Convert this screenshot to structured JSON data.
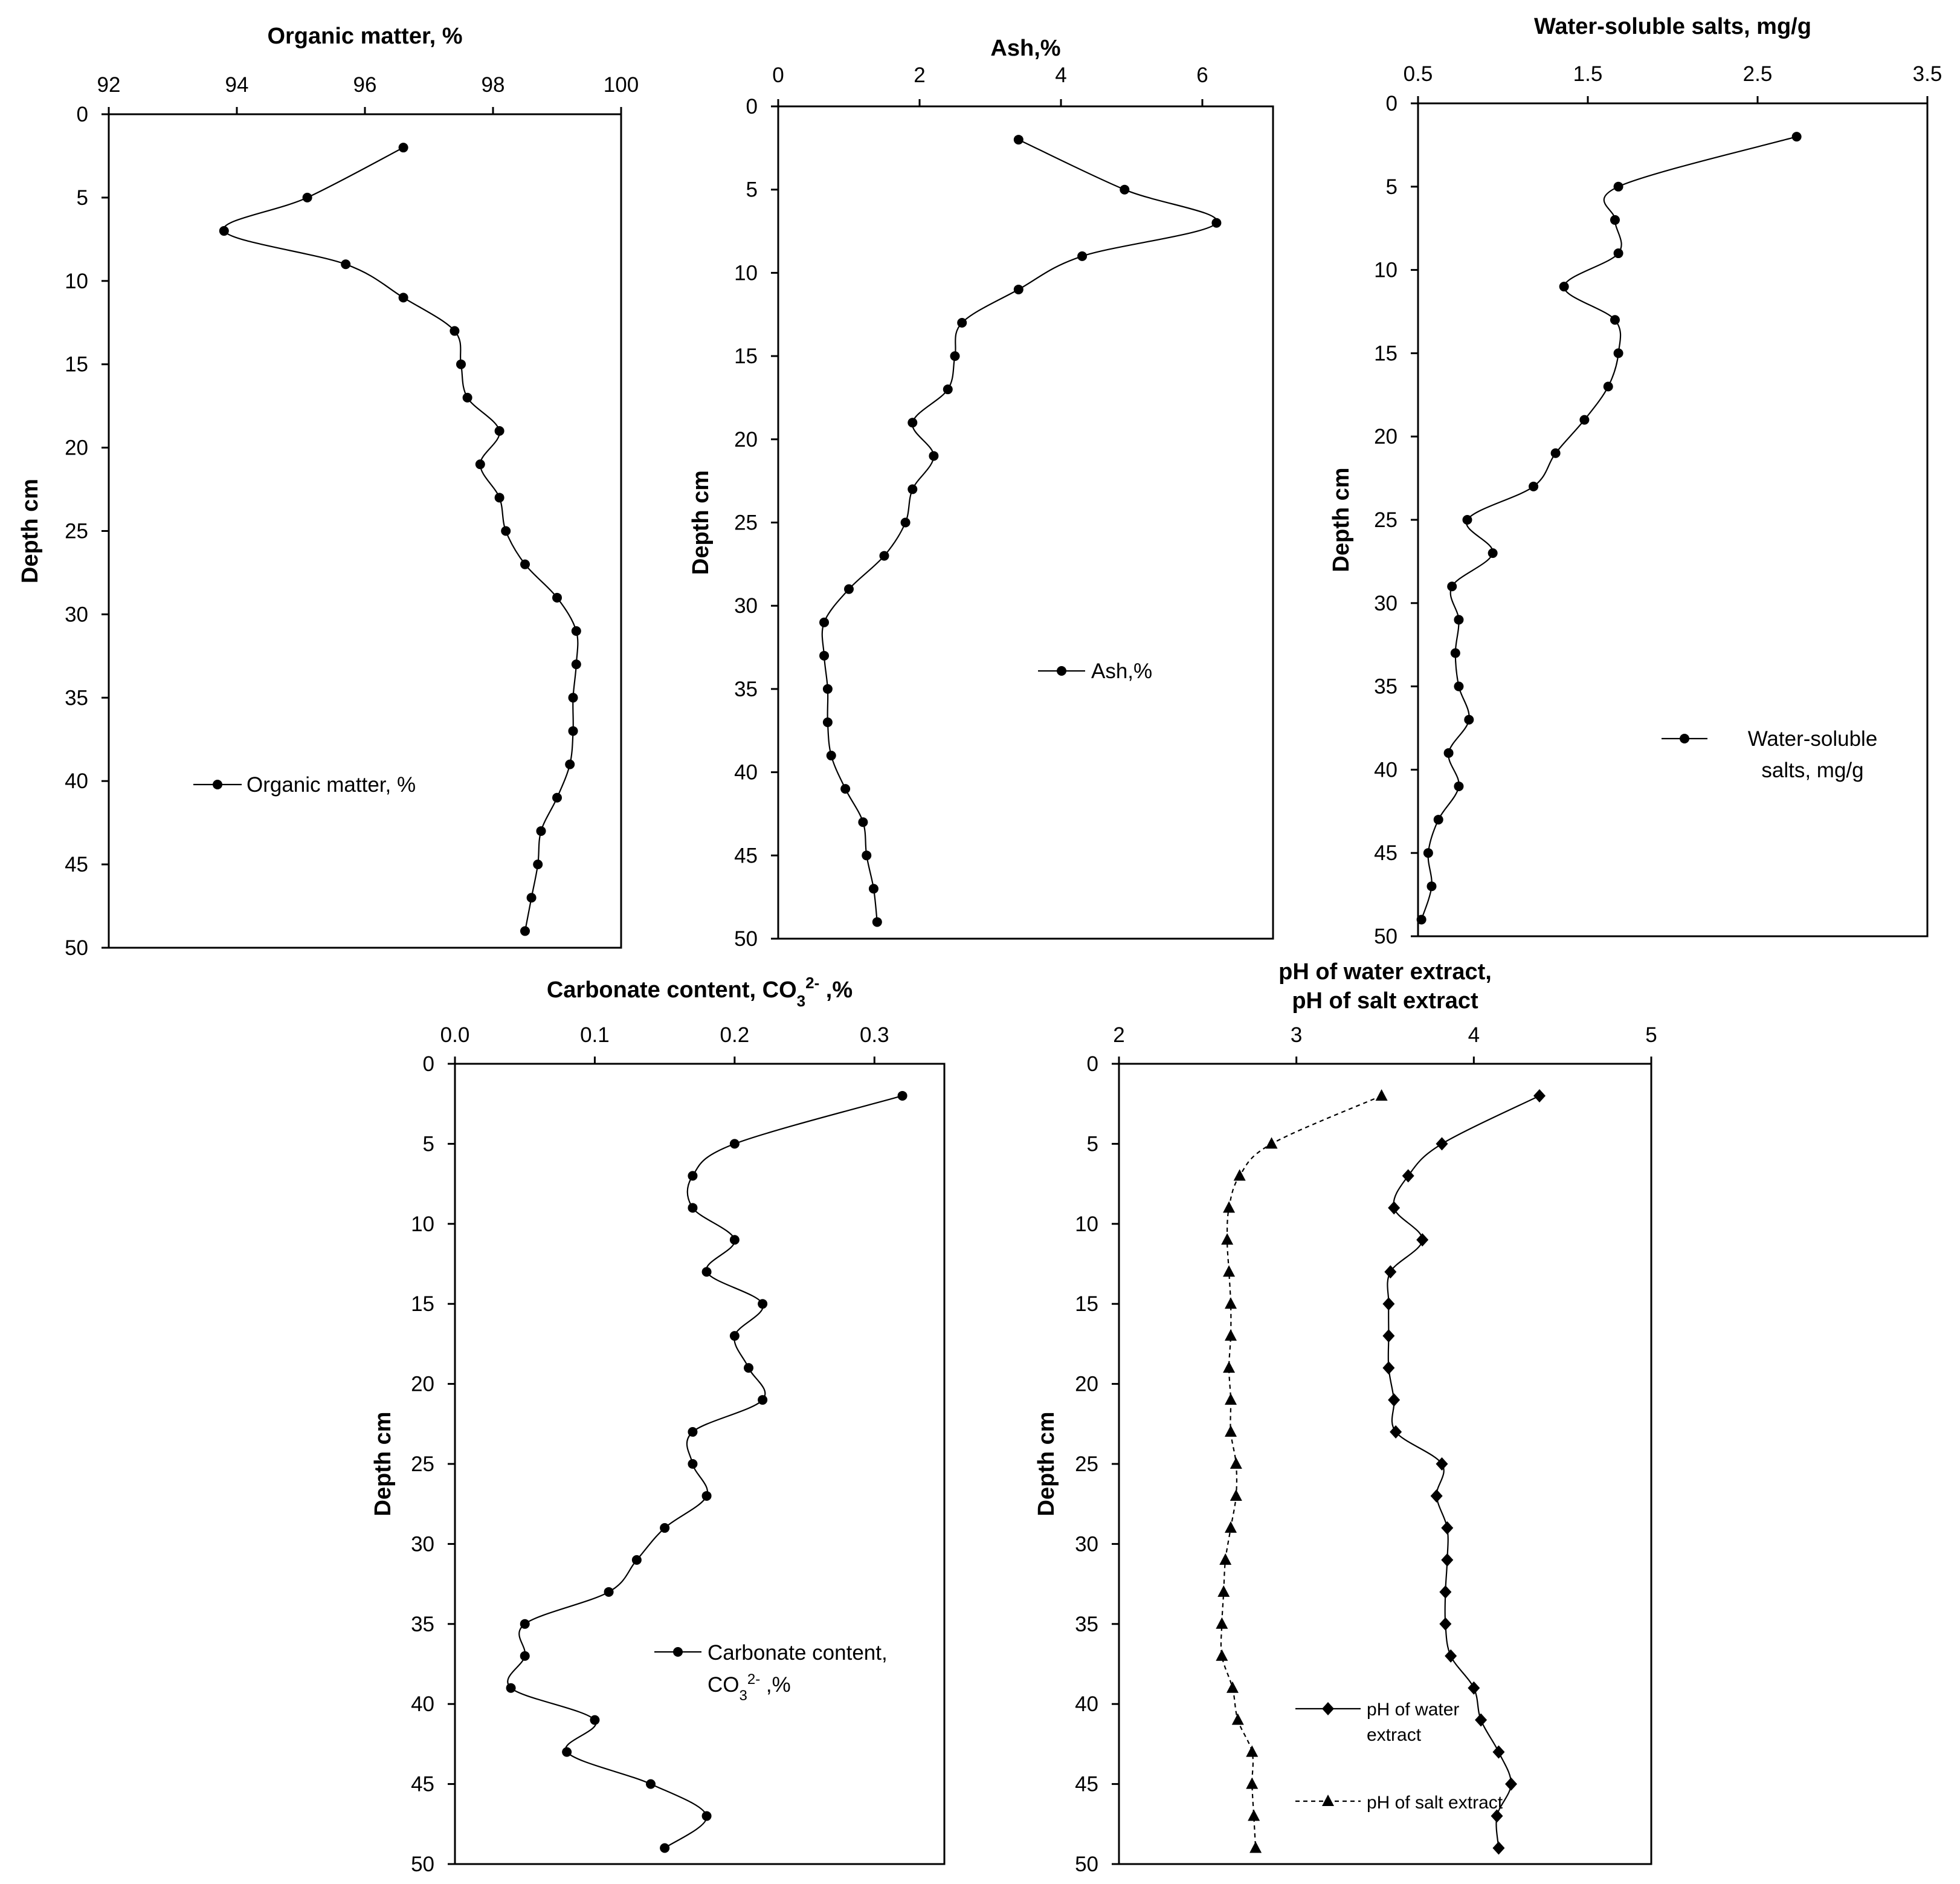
{
  "depth_label": "Depth cm",
  "chart_data": [
    {
      "id": "organic",
      "type": "line",
      "title": "Organic matter, %",
      "xlabel": "Organic matter, %",
      "ylabel": "Depth cm",
      "xlim": [
        92,
        100
      ],
      "ylim": [
        0,
        50
      ],
      "xticks": [
        "92",
        "94",
        "96",
        "98",
        "100"
      ],
      "yticks": [
        "0",
        "5",
        "10",
        "15",
        "20",
        "25",
        "30",
        "35",
        "40",
        "45",
        "50"
      ],
      "legend": {
        "position": "bottom-left",
        "labels": [
          "Organic matter, %"
        ]
      },
      "series": [
        {
          "name": "Organic matter, %",
          "marker": "circle",
          "dashed": false,
          "depth": [
            2,
            5,
            7,
            9,
            11,
            13,
            15,
            17,
            19,
            21,
            23,
            25,
            27,
            29,
            31,
            33,
            35,
            37,
            39,
            41,
            43,
            45,
            47,
            49
          ],
          "values": [
            96.6,
            95.1,
            93.8,
            95.7,
            96.6,
            97.4,
            97.5,
            97.6,
            98.1,
            97.8,
            98.1,
            98.2,
            98.5,
            99.0,
            99.3,
            99.3,
            99.25,
            99.25,
            99.2,
            99.0,
            98.75,
            98.7,
            98.6,
            98.5
          ]
        }
      ]
    },
    {
      "id": "ash",
      "type": "line",
      "title": "Ash,%",
      "xlabel": "Ash,%",
      "ylabel": "Depth cm",
      "xlim": [
        0,
        7
      ],
      "ylim": [
        0,
        50
      ],
      "xticks": [
        "0",
        "2",
        "4",
        "6"
      ],
      "yticks": [
        "0",
        "5",
        "10",
        "15",
        "20",
        "25",
        "30",
        "35",
        "40",
        "45",
        "50"
      ],
      "legend": {
        "position": "middle-right",
        "labels": [
          "Ash,%"
        ]
      },
      "series": [
        {
          "name": "Ash,%",
          "marker": "circle",
          "dashed": false,
          "depth": [
            2,
            5,
            7,
            9,
            11,
            13,
            15,
            17,
            19,
            21,
            23,
            25,
            27,
            29,
            31,
            33,
            35,
            37,
            39,
            41,
            43,
            45,
            47,
            49
          ],
          "values": [
            3.4,
            4.9,
            6.2,
            4.3,
            3.4,
            2.6,
            2.5,
            2.4,
            1.9,
            2.2,
            1.9,
            1.8,
            1.5,
            1.0,
            0.65,
            0.65,
            0.7,
            0.7,
            0.75,
            0.95,
            1.2,
            1.25,
            1.35,
            1.4
          ]
        }
      ]
    },
    {
      "id": "salts",
      "type": "line",
      "title": "Water-soluble salts, mg/g",
      "xlabel": "Water-soluble salts, mg/g",
      "ylabel": "Depth cm",
      "xlim": [
        0.5,
        3.5
      ],
      "ylim": [
        0,
        50
      ],
      "xticks": [
        "0.5",
        "1.5",
        "2.5",
        "3.5"
      ],
      "yticks": [
        "0",
        "5",
        "10",
        "15",
        "20",
        "25",
        "30",
        "35",
        "40",
        "45",
        "50"
      ],
      "legend": {
        "position": "bottom-right",
        "labels": [
          "Water-soluble",
          "salts, mg/g"
        ]
      },
      "series": [
        {
          "name": "Water-soluble salts, mg/g",
          "marker": "circle",
          "dashed": false,
          "depth": [
            2,
            5,
            7,
            9,
            11,
            13,
            15,
            17,
            19,
            21,
            23,
            25,
            27,
            29,
            31,
            33,
            35,
            37,
            39,
            41,
            43,
            45,
            47,
            49
          ],
          "values": [
            2.73,
            1.68,
            1.66,
            1.68,
            1.36,
            1.66,
            1.68,
            1.62,
            1.48,
            1.31,
            1.18,
            0.79,
            0.94,
            0.7,
            0.74,
            0.72,
            0.74,
            0.8,
            0.68,
            0.74,
            0.62,
            0.56,
            0.58,
            0.52
          ]
        }
      ]
    },
    {
      "id": "carbonate",
      "type": "line",
      "title": "Carbonate content, CO",
      "title_sub": "3",
      "title_sup": "2-",
      "title_tail": " ,%",
      "xlabel": "Carbonate content, CO3 2- ,%",
      "ylabel": "Depth cm",
      "xlim": [
        0.0,
        0.35
      ],
      "ylim": [
        0,
        50
      ],
      "xticks": [
        "0.0",
        "0.1",
        "0.2",
        "0.3"
      ],
      "yticks": [
        "0",
        "5",
        "10",
        "15",
        "20",
        "25",
        "30",
        "35",
        "40",
        "45",
        "50"
      ],
      "legend": {
        "position": "bottom-right",
        "labels": [
          "Carbonate content,",
          "CO"
        ],
        "sub": "3",
        "sup": "2-",
        "tail": " ,%"
      },
      "series": [
        {
          "name": "Carbonate content, CO3 2- ,%",
          "marker": "circle",
          "dashed": false,
          "depth": [
            2,
            5,
            7,
            9,
            11,
            13,
            15,
            17,
            19,
            21,
            23,
            25,
            27,
            29,
            31,
            33,
            35,
            37,
            39,
            41,
            43,
            45,
            47,
            49
          ],
          "values": [
            0.32,
            0.2,
            0.17,
            0.17,
            0.2,
            0.18,
            0.22,
            0.2,
            0.21,
            0.22,
            0.17,
            0.17,
            0.18,
            0.15,
            0.13,
            0.11,
            0.05,
            0.05,
            0.04,
            0.1,
            0.08,
            0.14,
            0.18,
            0.15
          ]
        }
      ]
    },
    {
      "id": "ph",
      "type": "line",
      "title": "pH of water extract,",
      "title2": "pH of salt extract",
      "xlabel": "pH",
      "ylabel": "Depth cm",
      "xlim": [
        2,
        5
      ],
      "ylim": [
        0,
        50
      ],
      "xticks": [
        "2",
        "3",
        "4",
        "5"
      ],
      "yticks": [
        "0",
        "5",
        "10",
        "15",
        "20",
        "25",
        "30",
        "35",
        "40",
        "45",
        "50"
      ],
      "legend": {
        "position": "bottom-right",
        "labels": [
          "pH of water",
          "extract",
          "pH of salt extract"
        ]
      },
      "series": [
        {
          "name": "pH of water extract",
          "marker": "diamond",
          "dashed": false,
          "depth": [
            2,
            5,
            7,
            9,
            11,
            13,
            15,
            17,
            19,
            21,
            23,
            25,
            27,
            29,
            31,
            33,
            35,
            37,
            39,
            41,
            43,
            45,
            47,
            49
          ],
          "values": [
            4.37,
            3.82,
            3.63,
            3.55,
            3.71,
            3.53,
            3.52,
            3.52,
            3.52,
            3.55,
            3.56,
            3.82,
            3.79,
            3.85,
            3.85,
            3.84,
            3.84,
            3.87,
            4.0,
            4.04,
            4.14,
            4.21,
            4.13,
            4.14
          ]
        },
        {
          "name": "pH of salt extract",
          "marker": "triangle",
          "dashed": true,
          "depth": [
            2,
            5,
            7,
            9,
            11,
            13,
            15,
            17,
            19,
            21,
            23,
            25,
            27,
            29,
            31,
            33,
            35,
            37,
            39,
            41,
            43,
            45,
            47,
            49
          ],
          "values": [
            3.48,
            2.86,
            2.68,
            2.62,
            2.61,
            2.62,
            2.63,
            2.63,
            2.62,
            2.63,
            2.63,
            2.66,
            2.66,
            2.63,
            2.6,
            2.59,
            2.58,
            2.58,
            2.64,
            2.67,
            2.75,
            2.75,
            2.76,
            2.77
          ]
        }
      ]
    }
  ]
}
